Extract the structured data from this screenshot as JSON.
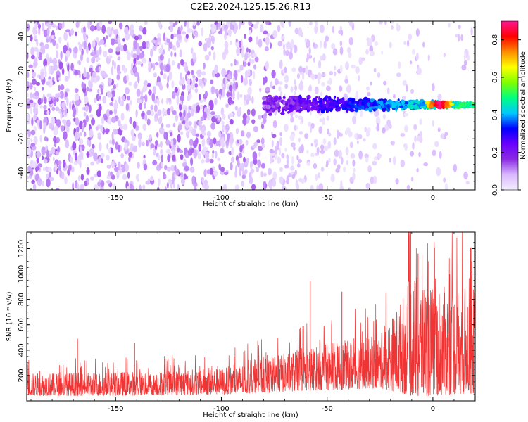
{
  "title": "C2E2.2024.125.15.26.R13",
  "chart_data": [
    {
      "type": "heatmap",
      "xlabel": "Height of straight line (km)",
      "ylabel": "Frequency (Hz)",
      "xlim": [
        -192,
        20
      ],
      "ylim": [
        -50,
        49
      ],
      "xticks": [
        -150,
        -100,
        -50,
        0
      ],
      "xtick_labels": [
        "-150",
        "-100",
        "-50",
        "0"
      ],
      "yticks": [
        -40,
        -20,
        0,
        20,
        40
      ],
      "ytick_labels": [
        "-40",
        "-20",
        "0",
        "20",
        "40"
      ],
      "signal_band": {
        "center_frequency": 0,
        "start_height": -80,
        "end_height": 20,
        "peak_height": 3,
        "peak_amplitude": 0.9
      },
      "colorbar": {
        "label": "Normalized spectral amplitude",
        "ticks": [
          0.0,
          0.2,
          0.4,
          0.6,
          0.8
        ],
        "tick_labels": [
          "0.0",
          "0.2",
          "0.4",
          "0.6",
          "0.8"
        ],
        "range": [
          0,
          0.9
        ],
        "colormap": [
          "#f4eeff",
          "#d9b8ff",
          "#8a2be2",
          "#6a00ff",
          "#0000ff",
          "#00c8ff",
          "#00ff80",
          "#7fff00",
          "#ffff00",
          "#ff8c00",
          "#ff0000",
          "#ff1493"
        ]
      }
    },
    {
      "type": "line",
      "xlabel": "Height of straight line (km)",
      "ylabel": "SNR (10 * v/v)",
      "xlim": [
        -192,
        20
      ],
      "ylim": [
        0,
        1330
      ],
      "xticks": [
        -150,
        -100,
        -50,
        0
      ],
      "xtick_labels": [
        "-150",
        "-100",
        "-50",
        "0"
      ],
      "yticks": [
        200,
        400,
        600,
        800,
        1000,
        1200
      ],
      "ytick_labels": [
        "200",
        "400",
        "600",
        "800",
        "1000",
        "1200"
      ],
      "color": "#f03333",
      "trend": [
        {
          "x": -192,
          "low": 40,
          "high": 220
        },
        {
          "x": -150,
          "low": 40,
          "high": 230
        },
        {
          "x": -100,
          "low": 50,
          "high": 260
        },
        {
          "x": -80,
          "low": 60,
          "high": 330
        },
        {
          "x": -60,
          "low": 80,
          "high": 420
        },
        {
          "x": -40,
          "low": 90,
          "high": 480
        },
        {
          "x": -25,
          "low": 100,
          "high": 520
        },
        {
          "x": -15,
          "low": 60,
          "high": 800
        },
        {
          "x": -10,
          "low": 40,
          "high": 1000
        },
        {
          "x": 0,
          "low": 40,
          "high": 900
        },
        {
          "x": 20,
          "low": 60,
          "high": 900
        }
      ],
      "notable_peaks": [
        {
          "x": -10.5,
          "y": 1330
        },
        {
          "x": -7,
          "y": 1160
        },
        {
          "x": -2,
          "y": 1100
        },
        {
          "x": 18,
          "y": 1210
        },
        {
          "x": -58,
          "y": 950
        },
        {
          "x": -43,
          "y": 860
        },
        {
          "x": -141,
          "y": 460
        },
        {
          "x": -168,
          "y": 490
        }
      ]
    }
  ]
}
